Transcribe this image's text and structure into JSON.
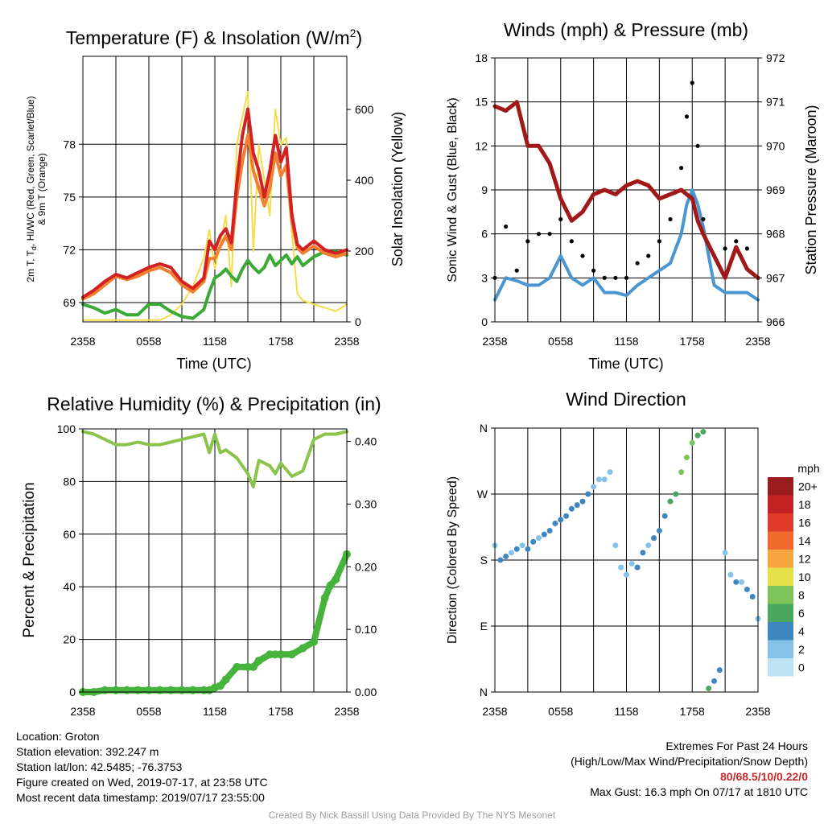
{
  "panels": {
    "temp": {
      "title_main": "Temperature (F) & Insolation (W/m",
      "title_sup": "2",
      "title_end": ")",
      "xlabel": "Time (UTC)",
      "ylabel_left_1": "2m T, T",
      "ylabel_left_sub": "d",
      "ylabel_left_2": ", HI/WC (Red, Green, Scarlet/Blue)",
      "ylabel_left_3": "& 9m T (Orange)",
      "ylabel_right": "Solar Insolation (Yellow)"
    },
    "wind": {
      "title": "Winds (mph) & Pressure (mb)",
      "xlabel": "Time (UTC)",
      "ylabel_left": "Sonic Wind & Gust (Blue, Black)",
      "ylabel_right": "Station Pressure (Maroon)"
    },
    "rh": {
      "title": "Relative Humidity (%) & Precipitation (in)",
      "ylabel_left": "Percent & Precipitation"
    },
    "dir": {
      "title": "Wind Direction",
      "ylabel_left": "Direction (Colored By Speed)",
      "legend_title": "mph",
      "legend_labels": [
        "20+",
        "18",
        "16",
        "14",
        "12",
        "10",
        "8",
        "6",
        "4",
        "2",
        "0"
      ]
    }
  },
  "footer": {
    "location": "Location: Groton",
    "elevation": "Station elevation: 392.247 m",
    "latlon": "Station lat/lon: 42.5485; -76.3753",
    "created": "Figure created on Wed, 2019-07-17, at 23:58 UTC",
    "recent": "Most recent data timestamp: 2019/07/17 23:55:00",
    "extremes_title": "Extremes For Past 24 Hours",
    "extremes_sub": "(High/Low/Max Wind/Precipitation/Snow Depth)",
    "extremes_values": "80/68.5/10/0.22/0",
    "max_gust": "Max Gust: 16.3 mph On 07/17 at 1810 UTC",
    "credit": "Created By Nick Bassill Using Data Provided By The NYS Mesonet"
  },
  "colors": {
    "temp": "#d32020",
    "dewpoint": "#3aa935",
    "temp9m": "#f08030",
    "insolation": "#f7dc4a",
    "wind": "#4b96d1",
    "gust": "#000000",
    "pressure": "#a01818",
    "rh": "#8cc34b",
    "precip": "#46b33c",
    "speed_scale": [
      "#bde3f5",
      "#85c2ea",
      "#3f86c1",
      "#4aa85e",
      "#7cc45a",
      "#e5e04c",
      "#f6a63e",
      "#ef6a2c",
      "#df3a2a",
      "#c42222",
      "#9b1c1c"
    ]
  },
  "chart_data": [
    {
      "type": "line",
      "title": "Temperature (F) & Insolation (W/m2)",
      "xlabel": "Time (UTC)",
      "ylabel": "2m T, Td, HI/WC (Red, Green, Scarlet/Blue) & 9m T (Orange)",
      "ylabel_right": "Solar Insolation (Yellow)",
      "x_ticks": [
        "2358",
        "0558",
        "1158",
        "1758",
        "2358"
      ],
      "y_ticks": [
        69,
        72,
        75,
        78
      ],
      "y2_ticks": [
        0,
        200,
        400,
        600
      ],
      "ylim": [
        67.9,
        83.0
      ],
      "y2lim": [
        0,
        750
      ],
      "x_hours": [
        0,
        1,
        2,
        3,
        4,
        5,
        6,
        7,
        8,
        9,
        10,
        11,
        11.5,
        12,
        12.5,
        13,
        13.5,
        14,
        14.5,
        15,
        15.5,
        16,
        16.5,
        17,
        17.5,
        18,
        18.5,
        19,
        19.5,
        20,
        21,
        22,
        23,
        24
      ],
      "series": [
        {
          "name": "2m T",
          "values": [
            69.3,
            69.7,
            70.2,
            70.6,
            70.4,
            70.7,
            71.0,
            71.2,
            71.0,
            70.2,
            69.8,
            70.4,
            72.5,
            72.0,
            72.8,
            73.2,
            72.4,
            75.8,
            78.5,
            80.0,
            77.5,
            76.5,
            75.0,
            76.5,
            78.5,
            77.0,
            77.8,
            74.0,
            72.3,
            72.0,
            72.5,
            72.0,
            71.8,
            72.0
          ]
        },
        {
          "name": "9m T",
          "values": [
            69.2,
            69.5,
            70.0,
            70.5,
            70.3,
            70.5,
            70.8,
            71.0,
            70.7,
            70.0,
            69.6,
            70.2,
            71.5,
            71.5,
            72.2,
            72.8,
            72.0,
            75.0,
            77.0,
            78.5,
            76.5,
            75.5,
            74.5,
            75.5,
            77.5,
            76.2,
            76.8,
            73.6,
            72.1,
            71.8,
            72.2,
            71.8,
            71.6,
            71.8
          ]
        },
        {
          "name": "Td",
          "values": [
            68.9,
            68.7,
            68.4,
            68.6,
            68.3,
            68.3,
            68.9,
            68.9,
            68.5,
            68.2,
            68.1,
            68.6,
            69.6,
            70.4,
            70.6,
            70.9,
            70.5,
            70.2,
            70.9,
            71.4,
            71.0,
            70.7,
            71.0,
            71.7,
            71.1,
            71.4,
            71.7,
            71.2,
            71.6,
            71.1,
            71.6,
            71.9,
            71.9,
            71.7
          ]
        },
        {
          "name": "Solar Insolation",
          "values": [
            5,
            5,
            5,
            5,
            5,
            5,
            5,
            5,
            20,
            50,
            100,
            180,
            260,
            150,
            220,
            300,
            100,
            500,
            580,
            650,
            200,
            500,
            400,
            300,
            600,
            500,
            520,
            250,
            80,
            60,
            50,
            40,
            30,
            50
          ]
        }
      ]
    },
    {
      "type": "line",
      "title": "Winds (mph) & Pressure (mb)",
      "xlabel": "Time (UTC)",
      "ylabel": "Sonic Wind & Gust (Blue, Black)",
      "ylabel_right": "Station Pressure (Maroon)",
      "x_ticks": [
        "2358",
        "0558",
        "1158",
        "1758",
        "2358"
      ],
      "y_ticks": [
        0,
        3,
        6,
        9,
        12,
        15,
        18
      ],
      "y2_ticks": [
        966,
        967,
        968,
        969,
        970,
        971,
        972
      ],
      "ylim": [
        0,
        18
      ],
      "y2lim": [
        966,
        972
      ],
      "x_hours": [
        0,
        1,
        2,
        3,
        4,
        5,
        6,
        7,
        8,
        9,
        10,
        11,
        12,
        13,
        14,
        15,
        16,
        17,
        17.5,
        18,
        18.5,
        19,
        20,
        21,
        22,
        23,
        24
      ],
      "series": [
        {
          "name": "Sonic Wind",
          "values": [
            1.5,
            3.0,
            2.8,
            2.5,
            2.5,
            3.0,
            4.5,
            3.0,
            2.5,
            3.0,
            2.0,
            2.0,
            1.8,
            2.5,
            3.0,
            3.5,
            4.0,
            6.0,
            8.0,
            9.0,
            8.0,
            6.5,
            2.5,
            2.0,
            2.0,
            2.0,
            1.5
          ]
        },
        {
          "name": "Gust",
          "values": [
            3.0,
            6.5,
            3.5,
            5.5,
            6.0,
            6.0,
            7.0,
            5.5,
            4.5,
            3.5,
            3.0,
            3.0,
            3.0,
            4.0,
            4.5,
            5.5,
            7.0,
            10.5,
            14.0,
            16.3,
            12.0,
            7.0,
            4.5,
            5.0,
            5.5,
            5.0,
            3.0
          ]
        },
        {
          "name": "Station Pressure",
          "values": [
            970.9,
            970.8,
            971.0,
            970.0,
            970.0,
            969.6,
            968.8,
            968.3,
            968.5,
            968.9,
            969.0,
            968.9,
            969.1,
            969.2,
            969.1,
            968.8,
            968.9,
            969.0,
            968.9,
            968.8,
            968.3,
            968.0,
            967.5,
            967.0,
            967.7,
            967.2,
            967.0
          ]
        }
      ]
    },
    {
      "type": "line",
      "title": "Relative Humidity (%) & Precipitation (in)",
      "ylabel": "Percent & Precipitation",
      "x_ticks": [
        "2358",
        "0558",
        "1158",
        "1758",
        "2358"
      ],
      "y_ticks": [
        0,
        20,
        40,
        60,
        80,
        100
      ],
      "y2_ticks": [
        0.0,
        0.1,
        0.2,
        0.3,
        0.4
      ],
      "y2_tick_labels": [
        "0.00",
        "0.10",
        "0.20",
        "0.30",
        "0.40"
      ],
      "ylim": [
        0,
        100
      ],
      "y2lim": [
        0,
        0.42
      ],
      "x_hours": [
        0,
        1,
        2,
        3,
        4,
        5,
        6,
        7,
        8,
        9,
        10,
        11,
        11.5,
        12,
        12.5,
        13,
        14,
        15,
        15.5,
        16,
        17,
        17.5,
        18,
        19,
        20,
        21,
        22,
        22.5,
        23,
        24
      ],
      "series": [
        {
          "name": "RH",
          "values": [
            99,
            98,
            96,
            94,
            94,
            95,
            94,
            94,
            95,
            96,
            97,
            98,
            91,
            98,
            91,
            92,
            89,
            83,
            78,
            88,
            86,
            83,
            87,
            82,
            84,
            96,
            98,
            98,
            98,
            99
          ]
        },
        {
          "name": "Precipitation",
          "values": [
            0.0,
            0.0,
            0.003,
            0.003,
            0.003,
            0.003,
            0.003,
            0.003,
            0.003,
            0.003,
            0.003,
            0.003,
            0.003,
            0.007,
            0.01,
            0.02,
            0.04,
            0.04,
            0.04,
            0.05,
            0.06,
            0.06,
            0.06,
            0.06,
            0.07,
            0.08,
            0.15,
            0.17,
            0.18,
            0.22
          ]
        }
      ]
    },
    {
      "type": "scatter",
      "title": "Wind Direction",
      "ylabel": "Direction (Colored By Speed)",
      "x_ticks": [
        "2358",
        "0558",
        "1158",
        "1758",
        "2358"
      ],
      "y_ticks": [
        "N",
        "E",
        "S",
        "W",
        "N"
      ],
      "ylim": [
        0,
        360
      ],
      "legend_title": "mph",
      "legend_labels": [
        "20+",
        "18",
        "16",
        "14",
        "12",
        "10",
        "8",
        "6",
        "4",
        "2",
        "0"
      ],
      "x_hours": [
        0,
        0.5,
        1,
        1.5,
        2,
        2.5,
        3,
        3.5,
        4,
        4.5,
        5,
        5.5,
        6,
        6.5,
        7,
        7.5,
        8,
        8.5,
        9,
        9.5,
        10,
        10.5,
        11,
        11.5,
        12,
        12.5,
        13,
        13.5,
        14,
        14.5,
        15,
        15.5,
        16,
        16.5,
        17,
        17.5,
        18,
        18.5,
        19,
        19.5,
        20,
        20.5,
        21,
        21.5,
        22,
        22.5,
        23,
        23.5,
        24
      ],
      "series": [
        {
          "name": "Direction",
          "values": [
            200,
            180,
            185,
            190,
            195,
            200,
            195,
            205,
            210,
            215,
            220,
            230,
            235,
            240,
            250,
            255,
            260,
            270,
            280,
            290,
            290,
            300,
            200,
            170,
            160,
            175,
            170,
            190,
            200,
            210,
            220,
            240,
            260,
            270,
            300,
            320,
            340,
            350,
            355,
            5,
            15,
            30,
            190,
            160,
            150,
            150,
            140,
            130,
            100
          ]
        },
        {
          "name": "Speed",
          "values": [
            2,
            3,
            3,
            2,
            3,
            2,
            3,
            3,
            2,
            3,
            4,
            3,
            4,
            4,
            3,
            4,
            3,
            3,
            2,
            2,
            1,
            2,
            2,
            1,
            2,
            2,
            3,
            3,
            2,
            3,
            4,
            4,
            5,
            6,
            7,
            8,
            7,
            6,
            6,
            5,
            4,
            3,
            2,
            2,
            3,
            2,
            3,
            3,
            2
          ]
        }
      ]
    }
  ]
}
